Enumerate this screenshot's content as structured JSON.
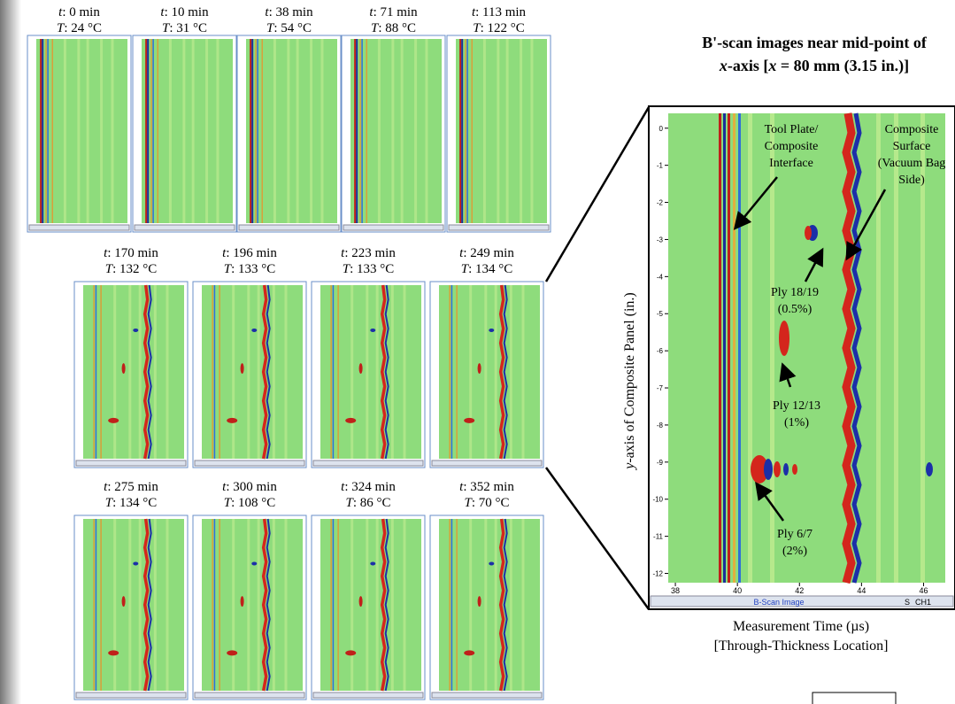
{
  "panel_vars": {
    "time": "t",
    "temp": "T"
  },
  "panels": [
    {
      "time": ": 0 min",
      "temp": ": 24 °C"
    },
    {
      "time": ": 10 min",
      "temp": ": 31 °C"
    },
    {
      "time": ": 38 min",
      "temp": ": 54 °C"
    },
    {
      "time": ": 71 min",
      "temp": ": 88 °C"
    },
    {
      "time": ": 113 min",
      "temp": ": 122 °C"
    },
    {
      "time": ": 170 min",
      "temp": ": 132 °C"
    },
    {
      "time": ": 196 min",
      "temp": ": 133 °C"
    },
    {
      "time": ": 223 min",
      "temp": ": 133 °C"
    },
    {
      "time": ": 249 min",
      "temp": ": 134 °C"
    },
    {
      "time": ": 275 min",
      "temp": ": 134 °C"
    },
    {
      "time": ": 300 min",
      "temp": ": 108 °C"
    },
    {
      "time": ": 324 min",
      "temp": ": 86 °C"
    },
    {
      "time": ": 352 min",
      "temp": ": 70 °C"
    }
  ],
  "title": {
    "line1": "B'-scan images near mid-point of",
    "line2": [
      {
        "text": "x",
        "italic": true
      },
      {
        "text": "-axis ["
      },
      {
        "text": "x",
        "italic": true
      },
      {
        "text": " = 80 mm (3.15 in.)]"
      }
    ]
  },
  "bscan": {
    "ylabel": [
      {
        "text": "y",
        "italic": true
      },
      {
        "text": "-axis of Composite Panel (in.)"
      }
    ],
    "xlabel": [
      "Measurement Time (µs)",
      "[Through-Thickness Location]"
    ],
    "xlim": [
      37.77,
      46.7
    ],
    "ylim": [
      0.4,
      -12.25
    ],
    "xticks": [
      38,
      40,
      42,
      44,
      46
    ],
    "yticks": [
      0,
      -1,
      -2,
      -3,
      -4,
      -5,
      -6,
      -7,
      -8,
      -9,
      -10,
      -11,
      -12
    ],
    "scrollbar_label": "B-Scan Image",
    "buttons": [
      "S",
      "CH1"
    ],
    "annotations": [
      {
        "lines": [
          "Tool Plate/",
          "Composite",
          "Interface"
        ]
      },
      {
        "lines": [
          "Composite",
          "Surface",
          "(Vacuum Bag",
          "Side)"
        ]
      },
      {
        "lines": [
          "Ply 18/19",
          "(0.5%)"
        ]
      },
      {
        "lines": [
          "Ply 12/13",
          "(1%)"
        ]
      },
      {
        "lines": [
          "Ply 6/7",
          "(2%)"
        ]
      }
    ]
  }
}
